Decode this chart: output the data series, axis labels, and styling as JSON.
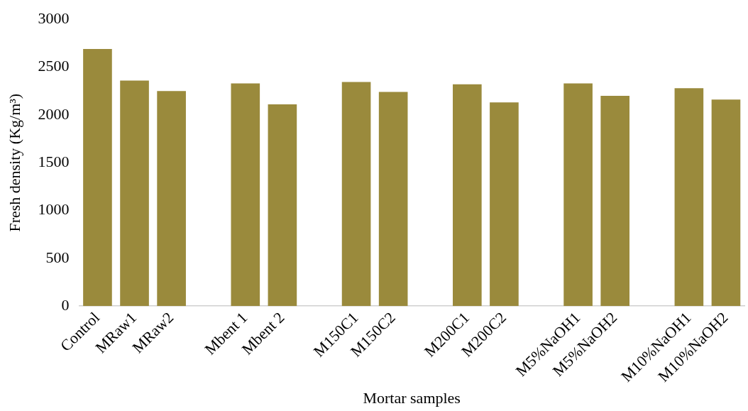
{
  "chart_data": {
    "type": "bar",
    "xlabel": "Mortar samples",
    "ylabel": "Fresh density (Kg/m³)",
    "categories": [
      "Control",
      "MRaw1",
      "MRaw2",
      null,
      "Mbent 1",
      "Mbent 2",
      null,
      "M150C1",
      "M150C2",
      null,
      "M200C1",
      "M200C2",
      null,
      "M5%NaOH1",
      "M5%NaOH2",
      null,
      "M10%NaOH1",
      "M10%NaOH2"
    ],
    "values": [
      2690,
      2360,
      2250,
      null,
      2330,
      2110,
      null,
      2345,
      2240,
      null,
      2320,
      2130,
      null,
      2330,
      2200,
      null,
      2280,
      2160
    ],
    "color": "#9a8a3c",
    "ylim": [
      0,
      3000
    ],
    "yticks": [
      0,
      500,
      1000,
      1500,
      2000,
      2500,
      3000
    ],
    "grid": false,
    "legend": false
  }
}
